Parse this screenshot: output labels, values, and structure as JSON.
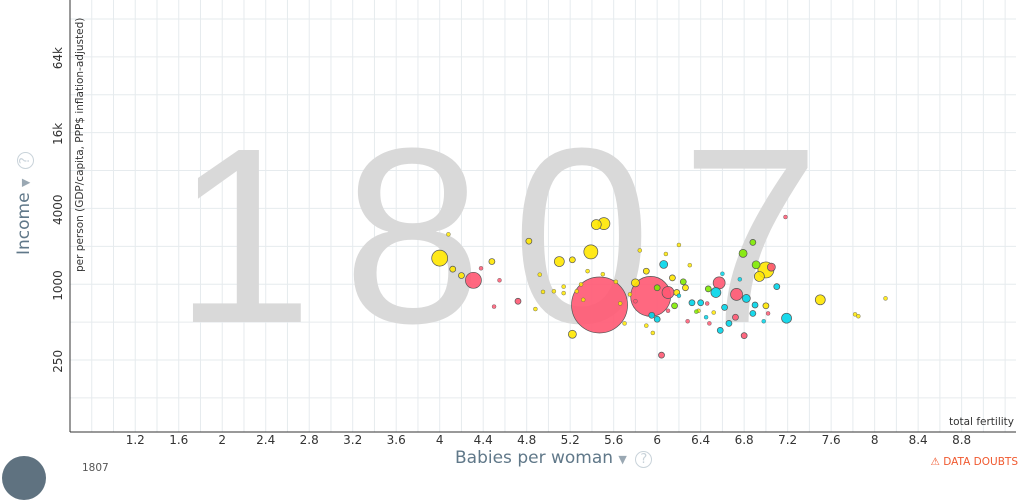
{
  "chart_data": {
    "type": "scatter",
    "year_watermark": "1807",
    "xlabel": "Babies per woman",
    "x_subtitle": "total fertility",
    "ylabel": "Income",
    "y_subtitle": "per person (GDP/capita, PPP$ inflation-adjusted)",
    "xlim": [
      0.6,
      9.3
    ],
    "ylim_log2": [
      6.1,
      17.5
    ],
    "x_ticks": [
      "1.2",
      "1.6",
      "2",
      "2.4",
      "2.8",
      "3.2",
      "3.6",
      "4",
      "4.4",
      "4.8",
      "5.2",
      "5.6",
      "6",
      "6.4",
      "6.8",
      "7.2",
      "7.6",
      "8",
      "8.4",
      "8.8"
    ],
    "y_ticks": [
      "250",
      "1000",
      "4000",
      "16k",
      "64k"
    ],
    "colors": {
      "red": "#ff5872",
      "yellow": "#ffe700",
      "cyan": "#00d5e9",
      "green": "#7feb00"
    },
    "points": [
      {
        "x": 5.47,
        "y": 700,
        "r": 28,
        "c": "red"
      },
      {
        "x": 5.94,
        "y": 820,
        "r": 20,
        "c": "red"
      },
      {
        "x": 4.31,
        "y": 1100,
        "r": 8,
        "c": "red"
      },
      {
        "x": 4.0,
        "y": 1650,
        "r": 8,
        "c": "yellow"
      },
      {
        "x": 5.39,
        "y": 1850,
        "r": 7,
        "c": "yellow"
      },
      {
        "x": 5.51,
        "y": 3100,
        "r": 6,
        "c": "yellow"
      },
      {
        "x": 5.44,
        "y": 3050,
        "r": 5,
        "c": "yellow"
      },
      {
        "x": 7.0,
        "y": 1330,
        "r": 8,
        "c": "yellow"
      },
      {
        "x": 7.5,
        "y": 770,
        "r": 5,
        "c": "yellow"
      },
      {
        "x": 6.54,
        "y": 880,
        "r": 5,
        "c": "cyan"
      },
      {
        "x": 7.19,
        "y": 550,
        "r": 5,
        "c": "cyan"
      },
      {
        "x": 6.79,
        "y": 1800,
        "r": 4,
        "c": "green"
      },
      {
        "x": 6.57,
        "y": 1050,
        "r": 6,
        "c": "red"
      },
      {
        "x": 6.1,
        "y": 880,
        "r": 6,
        "c": "red"
      },
      {
        "x": 6.73,
        "y": 850,
        "r": 6,
        "c": "red"
      },
      {
        "x": 6.06,
        "y": 1470,
        "r": 4,
        "c": "cyan"
      },
      {
        "x": 5.8,
        "y": 1050,
        "r": 4,
        "c": "yellow"
      },
      {
        "x": 5.1,
        "y": 1550,
        "r": 5,
        "c": "yellow"
      },
      {
        "x": 5.22,
        "y": 410,
        "r": 4,
        "c": "yellow"
      },
      {
        "x": 6.94,
        "y": 1180,
        "r": 5,
        "c": "yellow"
      },
      {
        "x": 6.91,
        "y": 1460,
        "r": 4,
        "c": "green"
      },
      {
        "x": 7.05,
        "y": 1400,
        "r": 4,
        "c": "red"
      },
      {
        "x": 6.82,
        "y": 790,
        "r": 4,
        "c": "cyan"
      },
      {
        "x": 6.47,
        "y": 940,
        "r": 3,
        "c": "green"
      },
      {
        "x": 6.18,
        "y": 880,
        "r": 3,
        "c": "yellow"
      },
      {
        "x": 6.32,
        "y": 730,
        "r": 3,
        "c": "cyan"
      },
      {
        "x": 6.04,
        "y": 280,
        "r": 3,
        "c": "red"
      },
      {
        "x": 4.12,
        "y": 1350,
        "r": 3,
        "c": "yellow"
      },
      {
        "x": 4.2,
        "y": 1200,
        "r": 3,
        "c": "yellow"
      },
      {
        "x": 4.48,
        "y": 1550,
        "r": 3,
        "c": "yellow"
      },
      {
        "x": 4.82,
        "y": 2250,
        "r": 3,
        "c": "yellow"
      },
      {
        "x": 4.72,
        "y": 750,
        "r": 3,
        "c": "red"
      },
      {
        "x": 5.22,
        "y": 1600,
        "r": 3,
        "c": "yellow"
      },
      {
        "x": 5.9,
        "y": 1300,
        "r": 3,
        "c": "yellow"
      },
      {
        "x": 6.26,
        "y": 960,
        "r": 3,
        "c": "yellow"
      },
      {
        "x": 6.66,
        "y": 500,
        "r": 3,
        "c": "cyan"
      },
      {
        "x": 6.72,
        "y": 560,
        "r": 3,
        "c": "red"
      },
      {
        "x": 6.9,
        "y": 700,
        "r": 3,
        "c": "cyan"
      },
      {
        "x": 7.0,
        "y": 690,
        "r": 3,
        "c": "yellow"
      },
      {
        "x": 6.4,
        "y": 730,
        "r": 3,
        "c": "cyan"
      },
      {
        "x": 6.0,
        "y": 540,
        "r": 3,
        "c": "cyan"
      },
      {
        "x": 5.95,
        "y": 580,
        "r": 3,
        "c": "cyan"
      },
      {
        "x": 6.16,
        "y": 690,
        "r": 3,
        "c": "green"
      },
      {
        "x": 6.24,
        "y": 1070,
        "r": 3,
        "c": "green"
      },
      {
        "x": 6.14,
        "y": 1150,
        "r": 3,
        "c": "yellow"
      },
      {
        "x": 6.0,
        "y": 960,
        "r": 3,
        "c": "green"
      },
      {
        "x": 6.88,
        "y": 2200,
        "r": 3,
        "c": "green"
      },
      {
        "x": 6.62,
        "y": 670,
        "r": 3,
        "c": "cyan"
      },
      {
        "x": 6.58,
        "y": 440,
        "r": 3,
        "c": "cyan"
      },
      {
        "x": 6.8,
        "y": 400,
        "r": 3,
        "c": "red"
      },
      {
        "x": 6.88,
        "y": 600,
        "r": 3,
        "c": "cyan"
      },
      {
        "x": 7.1,
        "y": 980,
        "r": 3,
        "c": "cyan"
      },
      {
        "x": 7.82,
        "y": 590,
        "r": 2,
        "c": "yellow"
      },
      {
        "x": 7.85,
        "y": 570,
        "r": 2,
        "c": "yellow"
      },
      {
        "x": 8.1,
        "y": 790,
        "r": 2,
        "c": "yellow"
      },
      {
        "x": 7.18,
        "y": 3500,
        "r": 2,
        "c": "red"
      },
      {
        "x": 4.08,
        "y": 2550,
        "r": 2,
        "c": "yellow"
      },
      {
        "x": 4.55,
        "y": 1100,
        "r": 2,
        "c": "red"
      },
      {
        "x": 4.92,
        "y": 1220,
        "r": 2,
        "c": "yellow"
      },
      {
        "x": 4.95,
        "y": 890,
        "r": 2,
        "c": "yellow"
      },
      {
        "x": 5.05,
        "y": 900,
        "r": 2,
        "c": "yellow"
      },
      {
        "x": 5.14,
        "y": 870,
        "r": 2,
        "c": "yellow"
      },
      {
        "x": 5.14,
        "y": 980,
        "r": 2,
        "c": "yellow"
      },
      {
        "x": 5.26,
        "y": 900,
        "r": 2,
        "c": "yellow"
      },
      {
        "x": 5.3,
        "y": 1020,
        "r": 2,
        "c": "yellow"
      },
      {
        "x": 5.36,
        "y": 1300,
        "r": 2,
        "c": "yellow"
      },
      {
        "x": 4.88,
        "y": 650,
        "r": 2,
        "c": "yellow"
      },
      {
        "x": 4.5,
        "y": 680,
        "r": 2,
        "c": "red"
      },
      {
        "x": 5.8,
        "y": 750,
        "r": 2,
        "c": "red"
      },
      {
        "x": 5.66,
        "y": 720,
        "r": 2,
        "c": "yellow"
      },
      {
        "x": 5.75,
        "y": 850,
        "r": 2,
        "c": "yellow"
      },
      {
        "x": 5.84,
        "y": 1900,
        "r": 2,
        "c": "yellow"
      },
      {
        "x": 6.2,
        "y": 2100,
        "r": 2,
        "c": "yellow"
      },
      {
        "x": 6.3,
        "y": 1450,
        "r": 2,
        "c": "yellow"
      },
      {
        "x": 6.1,
        "y": 630,
        "r": 2,
        "c": "red"
      },
      {
        "x": 5.9,
        "y": 480,
        "r": 2,
        "c": "yellow"
      },
      {
        "x": 5.7,
        "y": 500,
        "r": 2,
        "c": "yellow"
      },
      {
        "x": 5.96,
        "y": 420,
        "r": 2,
        "c": "yellow"
      },
      {
        "x": 6.38,
        "y": 630,
        "r": 2,
        "c": "yellow"
      },
      {
        "x": 6.46,
        "y": 720,
        "r": 2,
        "c": "red"
      },
      {
        "x": 6.52,
        "y": 610,
        "r": 2,
        "c": "yellow"
      },
      {
        "x": 6.28,
        "y": 520,
        "r": 2,
        "c": "red"
      },
      {
        "x": 6.45,
        "y": 560,
        "r": 2,
        "c": "cyan"
      },
      {
        "x": 6.98,
        "y": 520,
        "r": 2,
        "c": "cyan"
      },
      {
        "x": 7.02,
        "y": 600,
        "r": 2,
        "c": "red"
      },
      {
        "x": 6.76,
        "y": 1120,
        "r": 2,
        "c": "cyan"
      },
      {
        "x": 6.6,
        "y": 1240,
        "r": 2,
        "c": "cyan"
      },
      {
        "x": 6.36,
        "y": 620,
        "r": 2,
        "c": "green"
      },
      {
        "x": 6.48,
        "y": 500,
        "r": 2,
        "c": "red"
      },
      {
        "x": 6.2,
        "y": 830,
        "r": 2,
        "c": "cyan"
      },
      {
        "x": 6.08,
        "y": 1780,
        "r": 2,
        "c": "yellow"
      },
      {
        "x": 5.5,
        "y": 1230,
        "r": 2,
        "c": "yellow"
      },
      {
        "x": 5.62,
        "y": 1070,
        "r": 2,
        "c": "yellow"
      },
      {
        "x": 5.32,
        "y": 770,
        "r": 2,
        "c": "yellow"
      },
      {
        "x": 4.38,
        "y": 1370,
        "r": 2,
        "c": "red"
      }
    ]
  },
  "ui": {
    "data_doubts": "⚠ DATA DOUBTS",
    "timeline_year": "1807",
    "help_glyph": "?",
    "dropdown_glyph": "▼"
  }
}
